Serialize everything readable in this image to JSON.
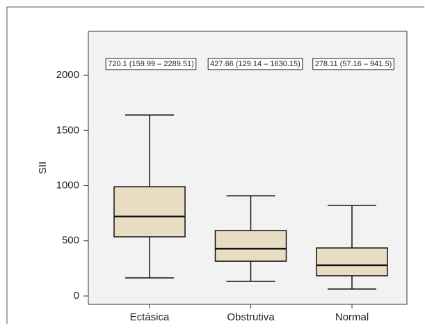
{
  "chart_data": {
    "type": "box",
    "y_label": "SII",
    "categories": [
      "Ectásica",
      "Obstrutiva",
      "Normal"
    ],
    "boxes": [
      {
        "whislo": 164,
        "q1": 536,
        "med": 720,
        "q3": 990,
        "whishi": 1640
      },
      {
        "whislo": 132,
        "q1": 315,
        "med": 428,
        "q3": 593,
        "whishi": 908
      },
      {
        "whislo": 63,
        "q1": 183,
        "med": 278,
        "q3": 435,
        "whishi": 820
      }
    ],
    "annotations": [
      "720.1 (159.99 – 2289.51)",
      "427.66 (129.14 – 1630.15)",
      "278.11 (57.16 – 941.5)"
    ],
    "color": "#e8dcc3",
    "ylim": [
      -76,
      2398
    ],
    "yticks": [
      0,
      500,
      1000,
      1500,
      2000
    ]
  }
}
